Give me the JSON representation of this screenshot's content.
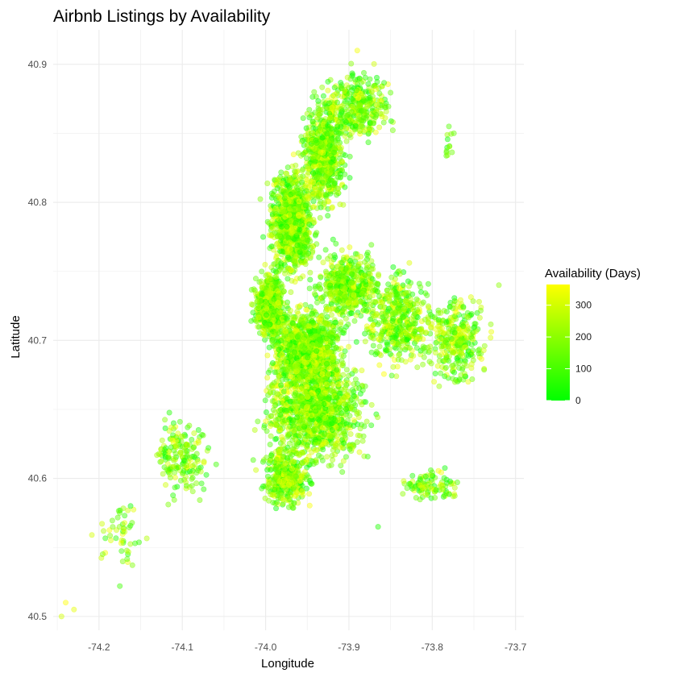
{
  "chart_data": {
    "type": "scatter",
    "title": "Airbnb Listings by Availability",
    "xlabel": "Longitude",
    "ylabel": "Latitude",
    "xlim": [
      -74.255,
      -73.69
    ],
    "ylim": [
      40.49,
      40.925
    ],
    "x_ticks": [
      -74.2,
      -74.1,
      -74.0,
      -73.9,
      -73.8,
      -73.7
    ],
    "x_tick_labels": [
      "-74.2",
      "-74.1",
      "-74.0",
      "-73.9",
      "-73.8",
      "-73.7"
    ],
    "y_ticks": [
      40.5,
      40.6,
      40.7,
      40.8,
      40.9
    ],
    "y_tick_labels": [
      "40.5",
      "40.6",
      "40.7",
      "40.8",
      "40.9"
    ],
    "grid": true,
    "legend": {
      "title": "Availability (Days)",
      "placement": "right",
      "range": [
        0,
        365
      ],
      "ticks": [
        0,
        100,
        200,
        300
      ],
      "tick_labels": [
        "0",
        "100",
        "200",
        "300"
      ],
      "low_color": "#00ff00",
      "high_color": "#ffff00"
    },
    "point_alpha": 0.45,
    "regions": [
      {
        "cx": -73.968,
        "cy": 40.785,
        "rx": 0.032,
        "ry": 0.045,
        "n": 900
      },
      {
        "cx": -73.93,
        "cy": 40.835,
        "rx": 0.03,
        "ry": 0.045,
        "n": 650
      },
      {
        "cx": -73.89,
        "cy": 40.87,
        "rx": 0.05,
        "ry": 0.03,
        "n": 350
      },
      {
        "cx": -73.995,
        "cy": 40.725,
        "rx": 0.022,
        "ry": 0.03,
        "n": 550
      },
      {
        "cx": -73.95,
        "cy": 40.695,
        "rx": 0.05,
        "ry": 0.035,
        "n": 1100
      },
      {
        "cx": -73.94,
        "cy": 40.65,
        "rx": 0.07,
        "ry": 0.045,
        "n": 1100
      },
      {
        "cx": -73.975,
        "cy": 40.6,
        "rx": 0.035,
        "ry": 0.025,
        "n": 350
      },
      {
        "cx": -73.9,
        "cy": 40.74,
        "rx": 0.045,
        "ry": 0.03,
        "n": 500
      },
      {
        "cx": -73.84,
        "cy": 40.715,
        "rx": 0.05,
        "ry": 0.04,
        "n": 450
      },
      {
        "cx": -73.77,
        "cy": 40.7,
        "rx": 0.04,
        "ry": 0.035,
        "n": 300
      },
      {
        "cx": -74.1,
        "cy": 40.615,
        "rx": 0.04,
        "ry": 0.035,
        "n": 180
      },
      {
        "cx": -74.17,
        "cy": 40.56,
        "rx": 0.04,
        "ry": 0.04,
        "n": 50
      },
      {
        "cx": -73.8,
        "cy": 40.595,
        "rx": 0.04,
        "ry": 0.012,
        "n": 100
      },
      {
        "cx": -73.78,
        "cy": 40.84,
        "rx": 0.01,
        "ry": 0.015,
        "n": 12
      }
    ],
    "sample_points": [
      {
        "x": -74.24,
        "y": 40.51,
        "availability": 365
      },
      {
        "x": -74.23,
        "y": 40.505,
        "availability": 330
      },
      {
        "x": -74.245,
        "y": 40.5,
        "availability": 300
      },
      {
        "x": -73.89,
        "y": 40.91,
        "availability": 350
      },
      {
        "x": -73.865,
        "y": 40.565,
        "availability": 40
      },
      {
        "x": -73.78,
        "y": 40.855,
        "availability": 120
      },
      {
        "x": -73.72,
        "y": 40.74,
        "availability": 200
      },
      {
        "x": -74.175,
        "y": 40.522,
        "availability": 90
      }
    ]
  }
}
